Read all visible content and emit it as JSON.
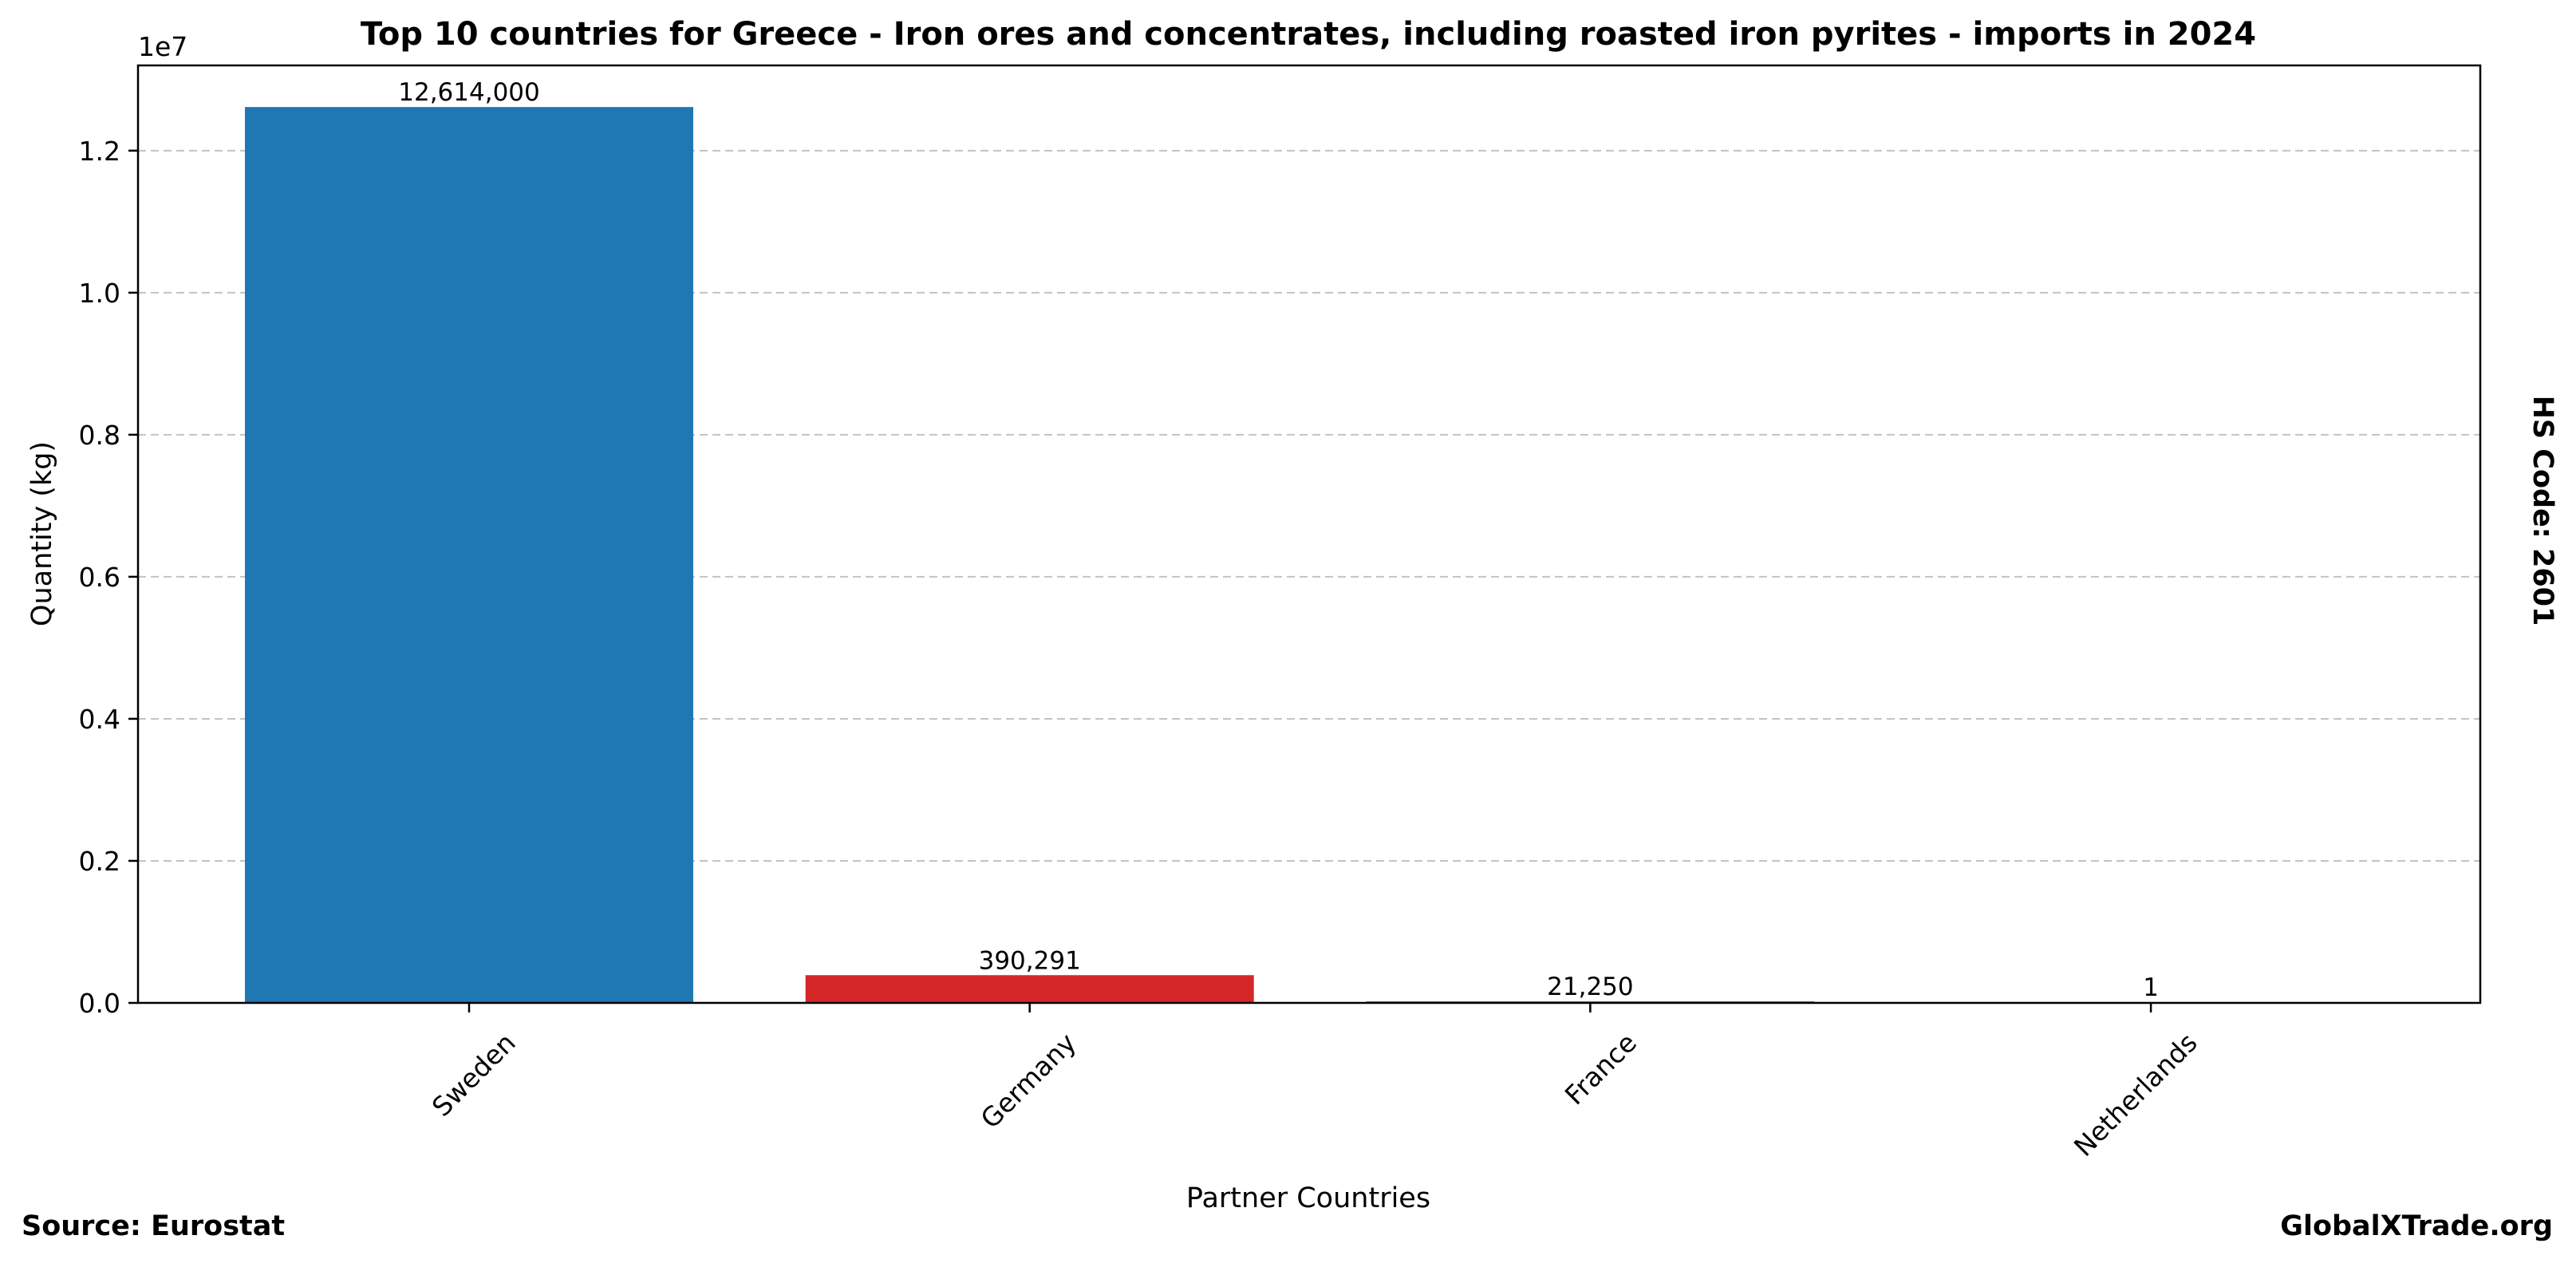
{
  "chart_data": {
    "type": "bar",
    "title": "Top 10 countries for Greece - Iron ores and concentrates, including roasted iron pyrites - imports in 2024",
    "xlabel": "Partner Countries",
    "ylabel": "Quantity (kg)",
    "y_offset_label": "1e7",
    "ylim": [
      0,
      13200000
    ],
    "yticks": [
      0,
      2000000,
      4000000,
      6000000,
      8000000,
      10000000,
      12000000
    ],
    "ytick_labels": [
      "0.0",
      "0.2",
      "0.4",
      "0.6",
      "0.8",
      "1.0",
      "1.2"
    ],
    "grid": true,
    "categories": [
      "Sweden",
      "Germany",
      "France",
      "Netherlands"
    ],
    "values": [
      12614000,
      390291,
      21250,
      1
    ],
    "value_labels": [
      "12,614,000",
      "390,291",
      "21,250",
      "1"
    ],
    "bar_colors": [
      "#1f77b4",
      "#d62728",
      "#1f77b4",
      "#1f77b4"
    ],
    "side_label": "HS Code: 2601",
    "source_label": "Source: Eurostat",
    "brand_label": "GlobalXTrade.org"
  }
}
